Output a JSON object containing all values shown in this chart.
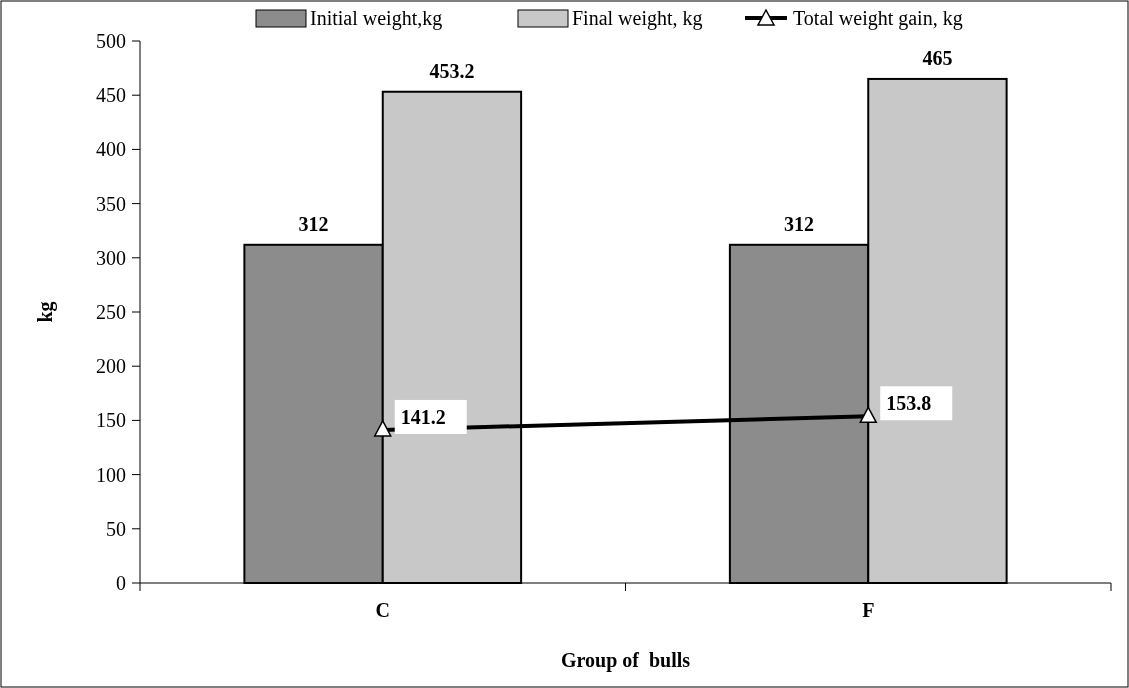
{
  "chart_data": {
    "type": "bar",
    "xlabel": "Group of  bulls",
    "ylabel": "kg",
    "categories": [
      "C",
      "F"
    ],
    "series": [
      {
        "name": "Initial weight,kg",
        "color": "#8c8c8c",
        "values": [
          312,
          312
        ]
      },
      {
        "name": "Final weight, kg",
        "color": "#c8c8c8",
        "values": [
          453.2,
          465
        ]
      },
      {
        "name": "Total weight gain, kg",
        "type": "line",
        "color": "#000000",
        "marker": "triangle",
        "values": [
          141.2,
          153.8
        ]
      }
    ],
    "ylim": [
      0,
      500
    ],
    "yticks": [
      0,
      50,
      100,
      150,
      200,
      250,
      300,
      350,
      400,
      450,
      500
    ],
    "grid": false,
    "legend": "top",
    "data_labels": true
  }
}
